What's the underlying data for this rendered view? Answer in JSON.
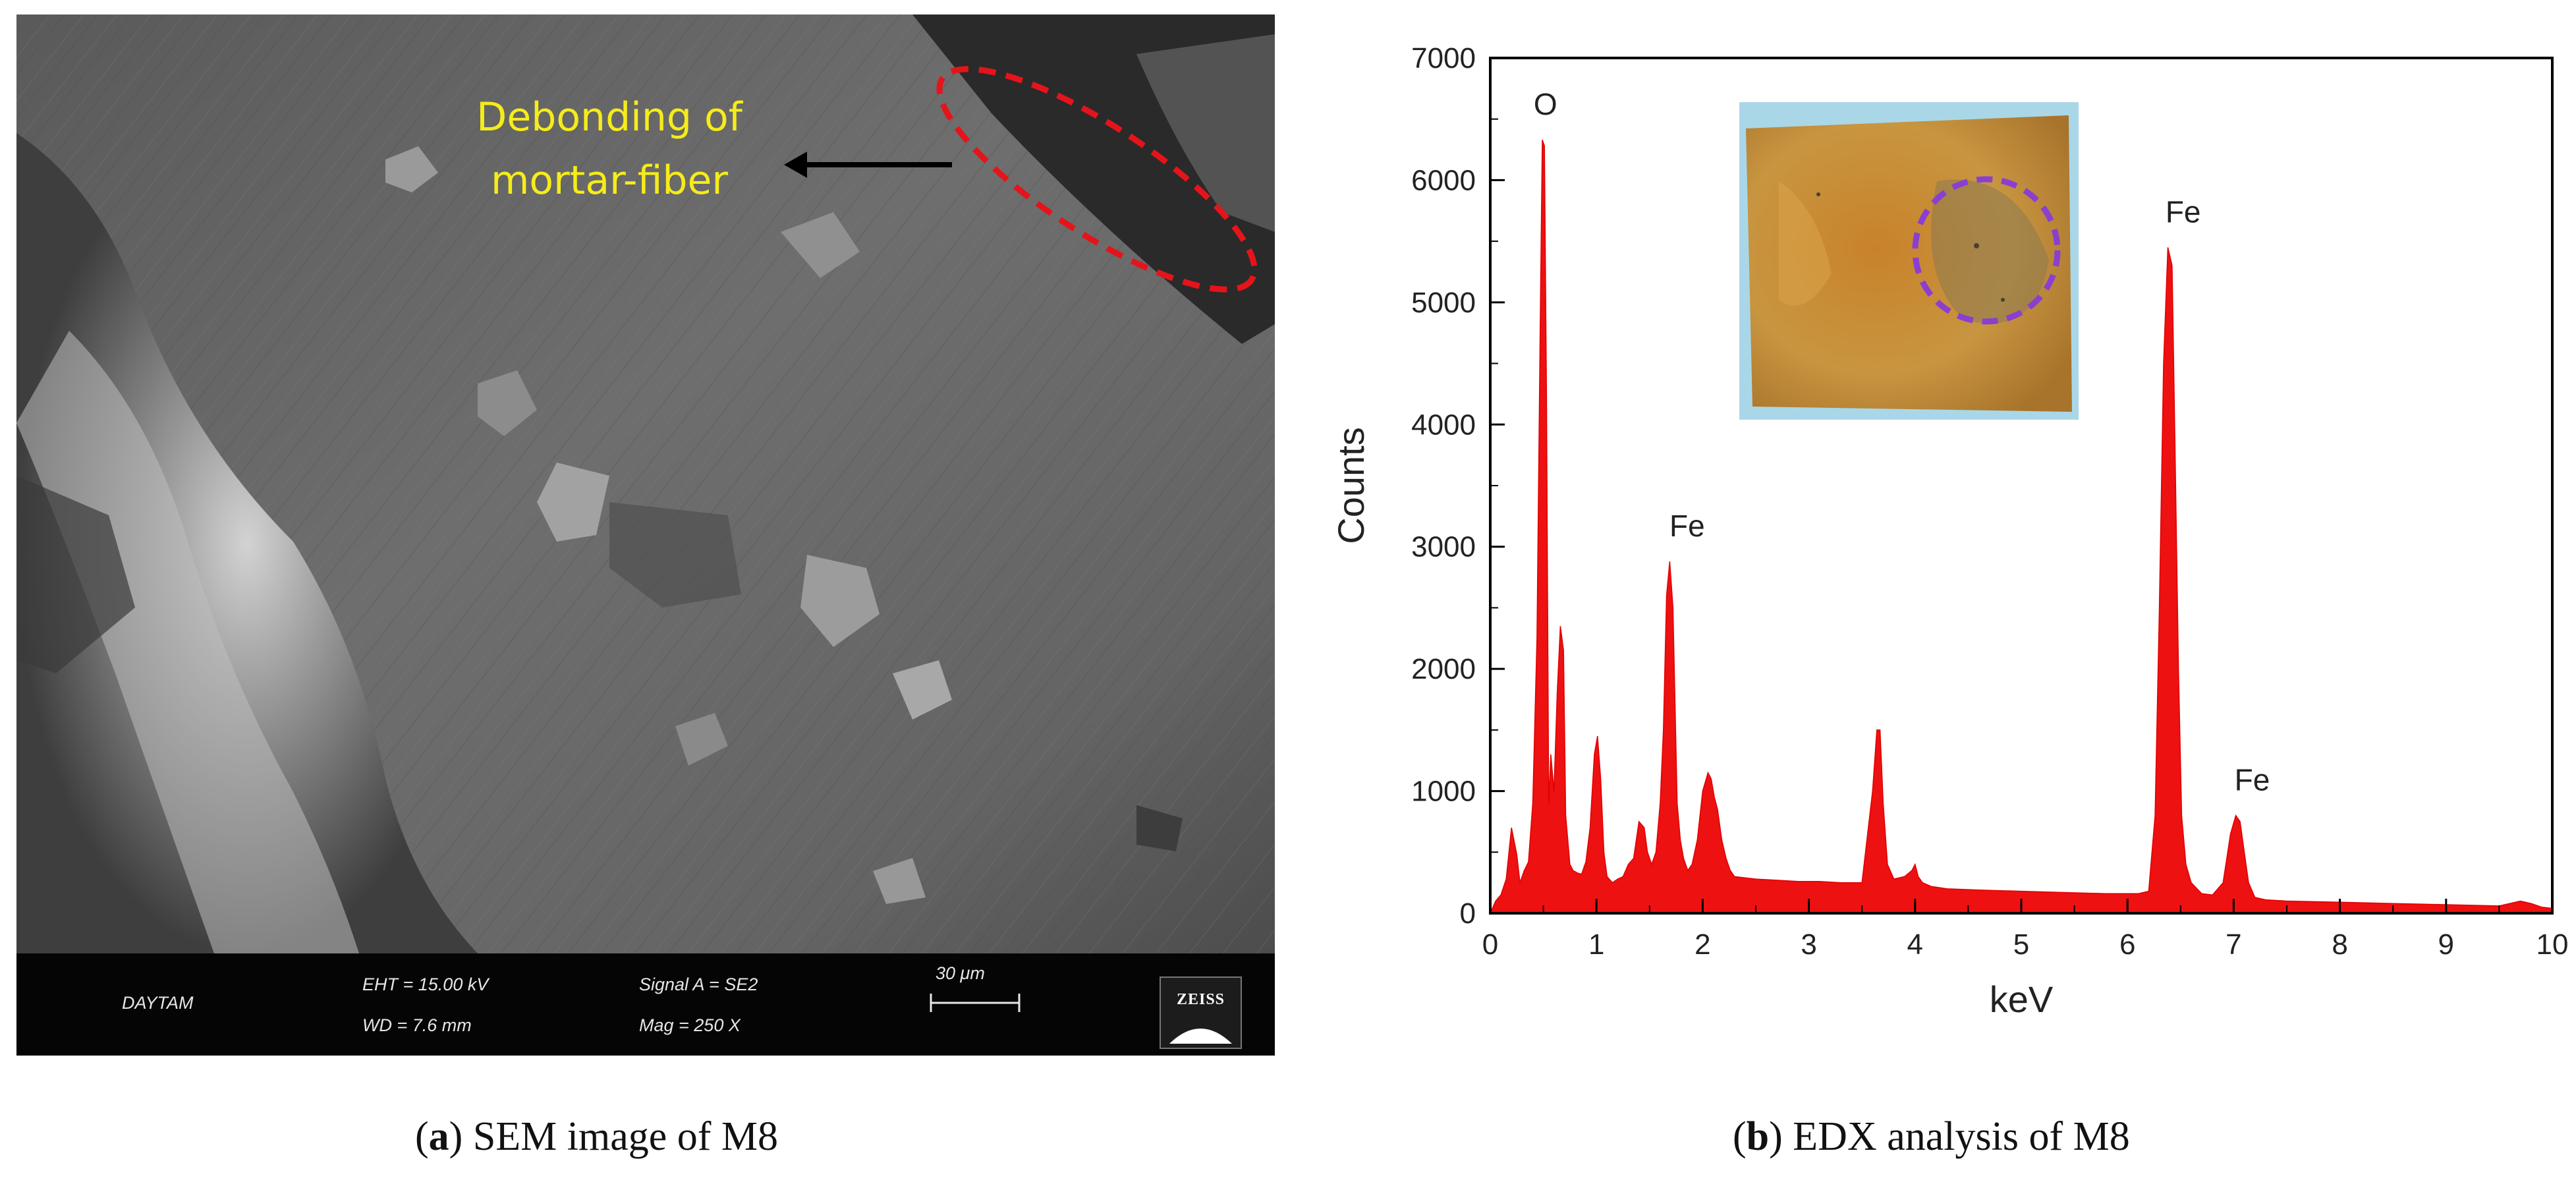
{
  "panel_a": {
    "caption_letter": "a",
    "caption_text": "SEM image of M8",
    "annotation": {
      "line1": "Debonding of",
      "line2": "mortar-fiber"
    },
    "infobar": {
      "lab": "DAYTAM",
      "eht": "EHT = 15.00 kV",
      "wd": "WD =  7.6 mm",
      "signal": "Signal A = SE2",
      "mag": "Mag =   250 X",
      "scale": "30 μm",
      "logo": "ZEISS"
    },
    "colors": {
      "annotation_text": "#f5ec1a",
      "ellipse": "#e5141b",
      "arrow": "#000000"
    }
  },
  "panel_b": {
    "caption_letter": "b",
    "caption_text": "EDX analysis of M8"
  },
  "chart_data": {
    "type": "area",
    "title": "",
    "xlabel": "keV",
    "ylabel": "Counts",
    "xlim": [
      0,
      10
    ],
    "ylim": [
      0,
      7000
    ],
    "x_ticks": [
      0,
      1,
      2,
      3,
      4,
      5,
      6,
      7,
      8,
      9,
      10
    ],
    "y_ticks": [
      0,
      1000,
      2000,
      3000,
      4000,
      5000,
      6000,
      7000
    ],
    "color": "#ee1111",
    "grid": false,
    "annotations": [
      {
        "label": "O",
        "x": 0.52,
        "y": 6330
      },
      {
        "label": "Fe",
        "x": 1.73,
        "y": 2880
      },
      {
        "label": "Fe",
        "x": 6.4,
        "y": 5450
      },
      {
        "label": "Fe",
        "x": 7.05,
        "y": 800
      }
    ],
    "series": [
      {
        "x": [
          0.0,
          0.05,
          0.1,
          0.15,
          0.2,
          0.25,
          0.28,
          0.32,
          0.36,
          0.4,
          0.44,
          0.47,
          0.49,
          0.51,
          0.53,
          0.55,
          0.57,
          0.6,
          0.63,
          0.66,
          0.69,
          0.71,
          0.73,
          0.75,
          0.78,
          0.82,
          0.86,
          0.9,
          0.94,
          0.98,
          1.01,
          1.04,
          1.07,
          1.1,
          1.15,
          1.2,
          1.25,
          1.3,
          1.35,
          1.4,
          1.45,
          1.48,
          1.52,
          1.56,
          1.6,
          1.63,
          1.66,
          1.69,
          1.72,
          1.74,
          1.76,
          1.79,
          1.82,
          1.86,
          1.9,
          1.95,
          2.0,
          2.05,
          2.08,
          2.11,
          2.14,
          2.18,
          2.22,
          2.26,
          2.3,
          2.4,
          2.5,
          2.7,
          2.9,
          3.1,
          3.3,
          3.5,
          3.6,
          3.64,
          3.67,
          3.7,
          3.74,
          3.8,
          3.9,
          3.97,
          4.0,
          4.03,
          4.07,
          4.15,
          4.3,
          4.6,
          5.0,
          5.4,
          5.8,
          6.1,
          6.2,
          6.26,
          6.3,
          6.34,
          6.38,
          6.42,
          6.45,
          6.48,
          6.51,
          6.55,
          6.6,
          6.7,
          6.8,
          6.9,
          6.97,
          7.02,
          7.06,
          7.1,
          7.14,
          7.2,
          7.3,
          7.5,
          8.0,
          8.5,
          9.0,
          9.5,
          9.7,
          9.8,
          9.9,
          10.0
        ],
        "values": [
          0,
          100,
          150,
          280,
          700,
          480,
          250,
          350,
          420,
          900,
          2250,
          4800,
          6330,
          6280,
          4200,
          900,
          1300,
          1000,
          1800,
          2350,
          2150,
          800,
          600,
          400,
          350,
          330,
          320,
          420,
          700,
          1300,
          1450,
          1100,
          500,
          300,
          250,
          280,
          300,
          400,
          450,
          750,
          700,
          500,
          400,
          500,
          900,
          1500,
          2600,
          2880,
          2500,
          1700,
          900,
          600,
          450,
          350,
          400,
          600,
          1000,
          1150,
          1100,
          950,
          850,
          600,
          450,
          350,
          300,
          290,
          280,
          270,
          260,
          260,
          250,
          250,
          1000,
          1500,
          1500,
          900,
          400,
          280,
          300,
          350,
          400,
          300,
          250,
          220,
          200,
          190,
          180,
          170,
          160,
          160,
          180,
          800,
          2500,
          4500,
          5450,
          5300,
          3700,
          2000,
          800,
          400,
          250,
          160,
          150,
          250,
          650,
          800,
          750,
          500,
          250,
          130,
          110,
          100,
          90,
          80,
          70,
          60,
          100,
          80,
          50,
          40
        ]
      }
    ]
  }
}
